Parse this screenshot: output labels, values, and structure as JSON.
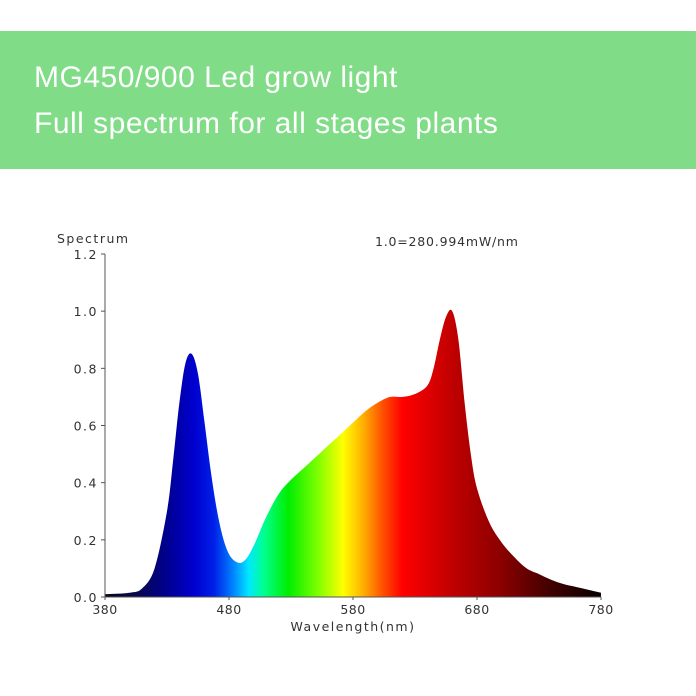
{
  "banner": {
    "title": "MG450/900 Led grow light",
    "subtitle": "Full spectrum for all stages plants",
    "background_color": "#80dc87",
    "text_color": "#ffffff"
  },
  "chart_data": {
    "type": "area",
    "title": "",
    "ylabel": "Spectrum",
    "xlabel": "Wavelength(nm)",
    "annotation": "1.0=280.994mW/nm",
    "xlim": [
      380,
      780
    ],
    "ylim": [
      0.0,
      1.2
    ],
    "x_ticks": [
      "380",
      "480",
      "580",
      "680",
      "780"
    ],
    "y_ticks": [
      "0.0",
      "0.2",
      "0.4",
      "0.6",
      "0.8",
      "1.0",
      "1.2"
    ],
    "grid": false,
    "legend": null,
    "fill": "wavelength-colored spectrum gradient",
    "x": [
      380,
      400,
      410,
      420,
      430,
      435,
      440,
      445,
      450,
      455,
      460,
      465,
      470,
      475,
      480,
      485,
      490,
      495,
      500,
      505,
      510,
      520,
      530,
      540,
      550,
      560,
      570,
      580,
      590,
      600,
      610,
      620,
      630,
      640,
      645,
      650,
      655,
      660,
      665,
      670,
      675,
      680,
      690,
      700,
      710,
      720,
      730,
      740,
      750,
      760,
      770,
      780
    ],
    "values": [
      0.01,
      0.015,
      0.03,
      0.1,
      0.3,
      0.48,
      0.68,
      0.82,
      0.85,
      0.78,
      0.62,
      0.45,
      0.31,
      0.21,
      0.15,
      0.125,
      0.12,
      0.14,
      0.18,
      0.23,
      0.28,
      0.36,
      0.41,
      0.45,
      0.49,
      0.53,
      0.57,
      0.61,
      0.65,
      0.68,
      0.7,
      0.7,
      0.71,
      0.74,
      0.8,
      0.9,
      0.98,
      1.0,
      0.9,
      0.68,
      0.5,
      0.38,
      0.26,
      0.19,
      0.14,
      0.1,
      0.08,
      0.06,
      0.045,
      0.035,
      0.025,
      0.015
    ]
  }
}
